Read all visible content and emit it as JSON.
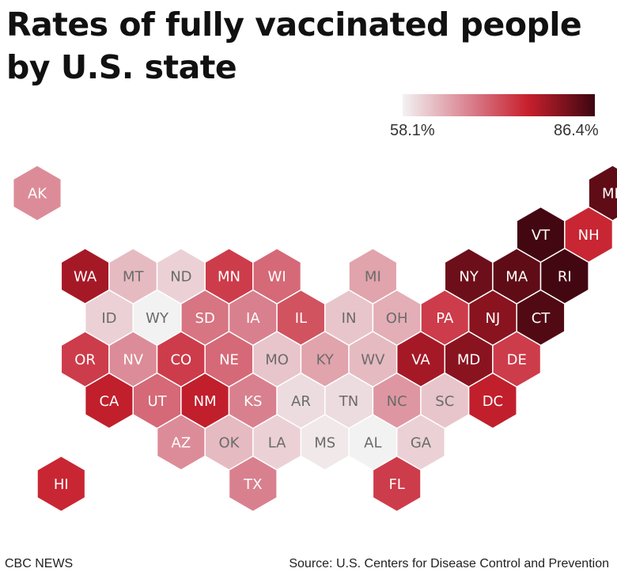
{
  "title": "Rates of fully vaccinated people by U.S. state",
  "legend": {
    "min_label": "58.1%",
    "max_label": "86.4%",
    "min_value": 58.1,
    "max_value": 86.4,
    "colors": [
      "#f2f2f2",
      "#d9808e",
      "#c8202d",
      "#3d0610"
    ]
  },
  "footer": {
    "brand": "CBC NEWS",
    "source": "Source: U.S. Centers for Disease Control and Prevention"
  },
  "chart_data": {
    "type": "hex-tile choropleth map",
    "value_unit": "% fully vaccinated",
    "states": [
      {
        "abbr": "AK",
        "value": 67
      },
      {
        "abbr": "ME",
        "value": 84
      },
      {
        "abbr": "VT",
        "value": 86
      },
      {
        "abbr": "NH",
        "value": 76
      },
      {
        "abbr": "WA",
        "value": 79
      },
      {
        "abbr": "MT",
        "value": 63
      },
      {
        "abbr": "ND",
        "value": 61
      },
      {
        "abbr": "MN",
        "value": 74
      },
      {
        "abbr": "WI",
        "value": 70
      },
      {
        "abbr": "MI",
        "value": 65
      },
      {
        "abbr": "NY",
        "value": 83
      },
      {
        "abbr": "MA",
        "value": 84
      },
      {
        "abbr": "RI",
        "value": 86
      },
      {
        "abbr": "ID",
        "value": 61
      },
      {
        "abbr": "WY",
        "value": 58
      },
      {
        "abbr": "SD",
        "value": 69
      },
      {
        "abbr": "IA",
        "value": 68
      },
      {
        "abbr": "IL",
        "value": 72
      },
      {
        "abbr": "IN",
        "value": 62
      },
      {
        "abbr": "OH",
        "value": 64
      },
      {
        "abbr": "PA",
        "value": 74
      },
      {
        "abbr": "NJ",
        "value": 81
      },
      {
        "abbr": "CT",
        "value": 85
      },
      {
        "abbr": "OR",
        "value": 74
      },
      {
        "abbr": "NV",
        "value": 67
      },
      {
        "abbr": "CO",
        "value": 74
      },
      {
        "abbr": "NE",
        "value": 70
      },
      {
        "abbr": "MO",
        "value": 62
      },
      {
        "abbr": "KY",
        "value": 65
      },
      {
        "abbr": "WV",
        "value": 63
      },
      {
        "abbr": "VA",
        "value": 79
      },
      {
        "abbr": "MD",
        "value": 81
      },
      {
        "abbr": "DE",
        "value": 74
      },
      {
        "abbr": "CA",
        "value": 77
      },
      {
        "abbr": "UT",
        "value": 70
      },
      {
        "abbr": "NM",
        "value": 77
      },
      {
        "abbr": "KS",
        "value": 68
      },
      {
        "abbr": "AR",
        "value": 60
      },
      {
        "abbr": "TN",
        "value": 60
      },
      {
        "abbr": "NC",
        "value": 66
      },
      {
        "abbr": "SC",
        "value": 62
      },
      {
        "abbr": "DC",
        "value": 77
      },
      {
        "abbr": "AZ",
        "value": 67
      },
      {
        "abbr": "OK",
        "value": 63
      },
      {
        "abbr": "LA",
        "value": 61
      },
      {
        "abbr": "MS",
        "value": 59
      },
      {
        "abbr": "AL",
        "value": 58
      },
      {
        "abbr": "GA",
        "value": 61
      },
      {
        "abbr": "HI",
        "value": 76
      },
      {
        "abbr": "TX",
        "value": 68
      },
      {
        "abbr": "FL",
        "value": 74
      }
    ]
  }
}
